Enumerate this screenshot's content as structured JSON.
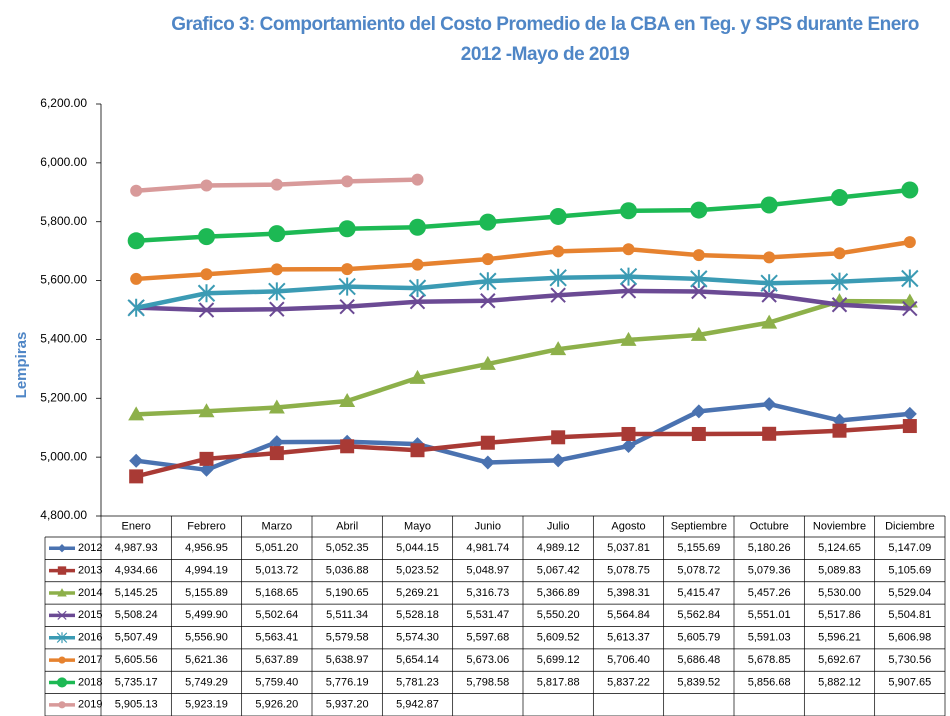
{
  "chart_data": {
    "type": "line",
    "title": "Grafico 3: Comportamiento del Costo Promedio de la CBA en Teg. y SPS durante Enero 2012 -Mayo de 2019",
    "ylabel": "Lempiras",
    "categories": [
      "Enero",
      "Febrero",
      "Marzo",
      "Abril",
      "Mayo",
      "Junio",
      "Julio",
      "Agosto",
      "Septiembre",
      "Octubre",
      "Noviembre",
      "Diciembre"
    ],
    "ylim": [
      4800,
      6200
    ],
    "yticks": [
      {
        "value": 4800,
        "label": "4,800.00"
      },
      {
        "value": 5000,
        "label": "5,000.00"
      },
      {
        "value": 5200,
        "label": "5,200.00"
      },
      {
        "value": 5400,
        "label": "5,400.00"
      },
      {
        "value": 5600,
        "label": "5,600.00"
      },
      {
        "value": 5800,
        "label": "5,800.00"
      },
      {
        "value": 6000,
        "label": "6,000.00"
      },
      {
        "value": 6200,
        "label": "6,200.00"
      }
    ],
    "grid": false,
    "series": [
      {
        "name": "2012",
        "color": "#4a72b0",
        "marker": "diamond",
        "values": [
          4987.93,
          4956.95,
          5051.2,
          5052.35,
          5044.15,
          4981.74,
          4989.12,
          5037.81,
          5155.69,
          5180.26,
          5124.65,
          5147.09
        ],
        "value_labels": [
          "4,987.93",
          "4,956.95",
          "5,051.20",
          "5,052.35",
          "5,044.15",
          "4,981.74",
          "4,989.12",
          "5,037.81",
          "5,155.69",
          "5,180.26",
          "5,124.65",
          "5,147.09"
        ]
      },
      {
        "name": "2013",
        "color": "#a93a35",
        "marker": "square",
        "values": [
          4934.66,
          4994.19,
          5013.72,
          5036.88,
          5023.52,
          5048.97,
          5067.42,
          5078.75,
          5078.72,
          5079.36,
          5089.83,
          5105.69
        ],
        "value_labels": [
          "4,934.66",
          "4,994.19",
          "5,013.72",
          "5,036.88",
          "5,023.52",
          "5,048.97",
          "5,067.42",
          "5,078.75",
          "5,078.72",
          "5,079.36",
          "5,089.83",
          "5,105.69"
        ]
      },
      {
        "name": "2014",
        "color": "#8db04a",
        "marker": "triangle",
        "values": [
          5145.25,
          5155.89,
          5168.65,
          5190.65,
          5269.21,
          5316.73,
          5366.89,
          5398.31,
          5415.47,
          5457.26,
          5530.0,
          5529.04
        ],
        "value_labels": [
          "5,145.25",
          "5,155.89",
          "5,168.65",
          "5,190.65",
          "5,269.21",
          "5,316.73",
          "5,366.89",
          "5,398.31",
          "5,415.47",
          "5,457.26",
          "5,530.00",
          "5,529.04"
        ]
      },
      {
        "name": "2015",
        "color": "#6b4a94",
        "marker": "x",
        "values": [
          5508.24,
          5499.9,
          5502.64,
          5511.34,
          5528.18,
          5531.47,
          5550.2,
          5564.84,
          5562.84,
          5551.01,
          5517.86,
          5504.81
        ],
        "value_labels": [
          "5,508.24",
          "5,499.90",
          "5,502.64",
          "5,511.34",
          "5,528.18",
          "5,531.47",
          "5,550.20",
          "5,564.84",
          "5,562.84",
          "5,551.01",
          "5,517.86",
          "5,504.81"
        ]
      },
      {
        "name": "2016",
        "color": "#3b9bb4",
        "marker": "star",
        "values": [
          5507.49,
          5556.9,
          5563.41,
          5579.58,
          5574.3,
          5597.68,
          5609.52,
          5613.37,
          5605.79,
          5591.03,
          5596.21,
          5606.98
        ],
        "value_labels": [
          "5,507.49",
          "5,556.90",
          "5,563.41",
          "5,579.58",
          "5,574.30",
          "5,597.68",
          "5,609.52",
          "5,613.37",
          "5,605.79",
          "5,591.03",
          "5,596.21",
          "5,606.98"
        ]
      },
      {
        "name": "2017",
        "color": "#e6822f",
        "marker": "circle",
        "values": [
          5605.56,
          5621.36,
          5637.89,
          5638.97,
          5654.14,
          5673.06,
          5699.12,
          5706.4,
          5686.48,
          5678.85,
          5692.67,
          5730.56
        ],
        "value_labels": [
          "5,605.56",
          "5,621.36",
          "5,637.89",
          "5,638.97",
          "5,654.14",
          "5,673.06",
          "5,699.12",
          "5,706.40",
          "5,686.48",
          "5,678.85",
          "5,692.67",
          "5,730.56"
        ]
      },
      {
        "name": "2018",
        "color": "#1db954",
        "marker": "bigcircle",
        "values": [
          5735.17,
          5749.29,
          5759.4,
          5776.19,
          5781.23,
          5798.58,
          5817.88,
          5837.22,
          5839.52,
          5856.68,
          5882.12,
          5907.65
        ],
        "value_labels": [
          "5,735.17",
          "5,749.29",
          "5,759.40",
          "5,776.19",
          "5,781.23",
          "5,798.58",
          "5,817.88",
          "5,837.22",
          "5,839.52",
          "5,856.68",
          "5,882.12",
          "5,907.65"
        ]
      },
      {
        "name": "2019",
        "color": "#d89a9a",
        "marker": "circle",
        "values": [
          5905.13,
          5923.19,
          5926.2,
          5937.2,
          5942.87,
          null,
          null,
          null,
          null,
          null,
          null,
          null
        ],
        "value_labels": [
          "5,905.13",
          "5,923.19",
          "5,926.20",
          "5,937.20",
          "5,942.87",
          null,
          null,
          null,
          null,
          null,
          null,
          null
        ]
      }
    ]
  }
}
